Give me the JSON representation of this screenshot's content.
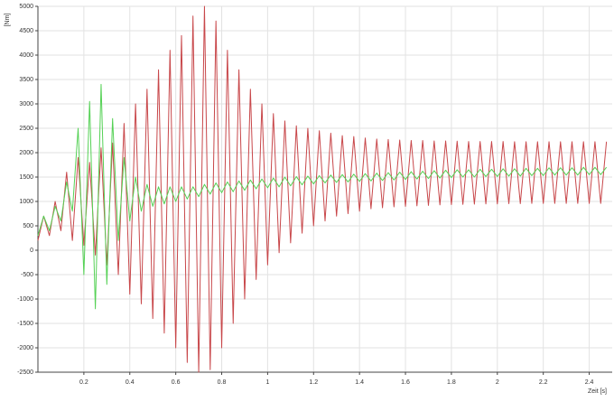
{
  "chart_data": {
    "type": "line",
    "y_label": "[Nm]",
    "x_label": "Zeit [s]",
    "xlim": [
      0,
      2.5
    ],
    "ylim": [
      -2500,
      5000
    ],
    "xticks": [
      0.2,
      0.4,
      0.6,
      0.8,
      1,
      1.2,
      1.4,
      1.6,
      1.8,
      2,
      2.2,
      2.4
    ],
    "yticks": [
      -2500,
      -2000,
      -1500,
      -1000,
      -500,
      0,
      500,
      1000,
      1500,
      2000,
      2500,
      3000,
      3500,
      4000,
      4500,
      5000
    ],
    "grid": true,
    "x": [
      0,
      0.025,
      0.05,
      0.075,
      0.1,
      0.125,
      0.15,
      0.175,
      0.2,
      0.225,
      0.25,
      0.275,
      0.3,
      0.325,
      0.35,
      0.375,
      0.4,
      0.425,
      0.45,
      0.475,
      0.5,
      0.525,
      0.55,
      0.575,
      0.6,
      0.625,
      0.65,
      0.675,
      0.7,
      0.725,
      0.75,
      0.775,
      0.8,
      0.825,
      0.85,
      0.875,
      0.9,
      0.925,
      0.95,
      0.975,
      1,
      1.025,
      1.05,
      1.075,
      1.1,
      1.125,
      1.15,
      1.175,
      1.2,
      1.225,
      1.25,
      1.275,
      1.3,
      1.325,
      1.35,
      1.375,
      1.4,
      1.425,
      1.45,
      1.475,
      1.5,
      1.525,
      1.55,
      1.575,
      1.6,
      1.625,
      1.65,
      1.675,
      1.7,
      1.725,
      1.75,
      1.775,
      1.8,
      1.825,
      1.85,
      1.875,
      1.9,
      1.925,
      1.95,
      1.975,
      2,
      2.025,
      2.05,
      2.075,
      2.1,
      2.125,
      2.15,
      2.175,
      2.2,
      2.225,
      2.25,
      2.275,
      2.3,
      2.325,
      2.35,
      2.375,
      2.4,
      2.425,
      2.45,
      2.475
    ],
    "series": [
      {
        "color": "#c8474a",
        "values": [
          200,
          700,
          300,
          1000,
          400,
          1600,
          200,
          1900,
          100,
          1800,
          -100,
          2100,
          -300,
          2200,
          -500,
          2600,
          -900,
          3000,
          -1100,
          3300,
          -1400,
          3700,
          -1700,
          4100,
          -2000,
          4400,
          -2300,
          4800,
          -2500,
          5000,
          -2450,
          4700,
          -2000,
          4100,
          -1500,
          3700,
          -1000,
          3300,
          -600,
          3000,
          -300,
          2800,
          -50,
          2650,
          150,
          2550,
          350,
          2500,
          500,
          2450,
          600,
          2400,
          700,
          2350,
          750,
          2330,
          800,
          2300,
          850,
          2280,
          870,
          2270,
          890,
          2260,
          900,
          2250,
          910,
          2250,
          920,
          2240,
          930,
          2240,
          935,
          2235,
          940,
          2230,
          945,
          2230,
          950,
          2230,
          950,
          2230,
          955,
          2225,
          955,
          2225,
          960,
          2225,
          960,
          2225,
          960,
          2225,
          960,
          2225,
          960,
          2225,
          960,
          2225,
          960,
          2225
        ]
      },
      {
        "color": "#55d155",
        "values": [
          300,
          700,
          400,
          900,
          600,
          1400,
          800,
          2500,
          -500,
          3050,
          -1200,
          3400,
          -700,
          2700,
          200,
          1900,
          600,
          1500,
          800,
          1350,
          900,
          1300,
          950,
          1300,
          1000,
          1300,
          1050,
          1300,
          1100,
          1350,
          1150,
          1380,
          1180,
          1400,
          1200,
          1420,
          1230,
          1440,
          1260,
          1460,
          1280,
          1480,
          1300,
          1500,
          1320,
          1510,
          1340,
          1520,
          1360,
          1530,
          1380,
          1540,
          1390,
          1550,
          1400,
          1560,
          1410,
          1570,
          1420,
          1580,
          1430,
          1590,
          1440,
          1600,
          1450,
          1610,
          1460,
          1620,
          1470,
          1630,
          1480,
          1640,
          1490,
          1650,
          1500,
          1650,
          1500,
          1660,
          1510,
          1660,
          1510,
          1670,
          1520,
          1670,
          1520,
          1680,
          1530,
          1680,
          1530,
          1690,
          1540,
          1690,
          1540,
          1690,
          1540,
          1700,
          1550,
          1700,
          1550,
          1700
        ]
      }
    ]
  }
}
